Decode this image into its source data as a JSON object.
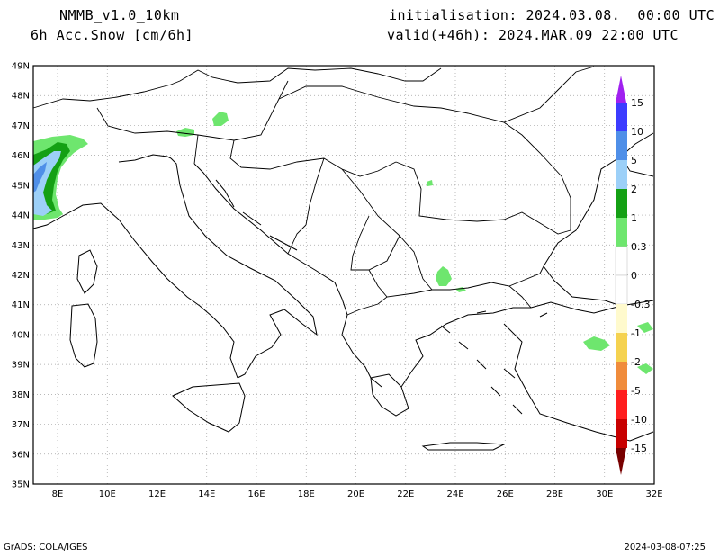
{
  "header": {
    "model": "NMMB_v1.0_10km",
    "field": "6h Acc.Snow [cm/6h]",
    "init": "initialisation: 2024.03.08.  00:00 UTC",
    "valid": "valid(+46h): 2024.MAR.09 22:00 UTC"
  },
  "footer": {
    "left": "GrADS: COLA/IGES",
    "right": "2024-03-08-07:25"
  },
  "map": {
    "lat_labels": [
      "49N",
      "48N",
      "47N",
      "46N",
      "45N",
      "44N",
      "43N",
      "42N",
      "41N",
      "40N",
      "39N",
      "38N",
      "37N",
      "36N",
      "35N"
    ],
    "lon_labels": [
      "8E",
      "10E",
      "12E",
      "14E",
      "16E",
      "18E",
      "20E",
      "22E",
      "24E",
      "26E",
      "28E",
      "30E",
      "32E"
    ],
    "colors": {
      "coast": "#000000",
      "grid": "#a0a0a0"
    }
  },
  "colorbar": {
    "labels": [
      "15",
      "10",
      "5",
      "2",
      "1",
      "0.3",
      "0",
      "-0.3",
      "-1",
      "-2",
      "-5",
      "-10",
      "-15"
    ],
    "colors": {
      "purple": "#a020f0",
      "blue_dark": "#3c3cff",
      "blue": "#4f8fe8",
      "blue_light": "#9cd0f8",
      "green_dark": "#14a014",
      "green_light": "#6ee66e",
      "white": "#ffffff",
      "cream": "#fffacd",
      "yellow": "#f5d250",
      "gold": "#f0b43c",
      "orange": "#f08c3c",
      "red": "#ff1e1e",
      "red_dark": "#c80000",
      "maroon": "#8c0000",
      "maroon_tip": "#780000"
    }
  }
}
